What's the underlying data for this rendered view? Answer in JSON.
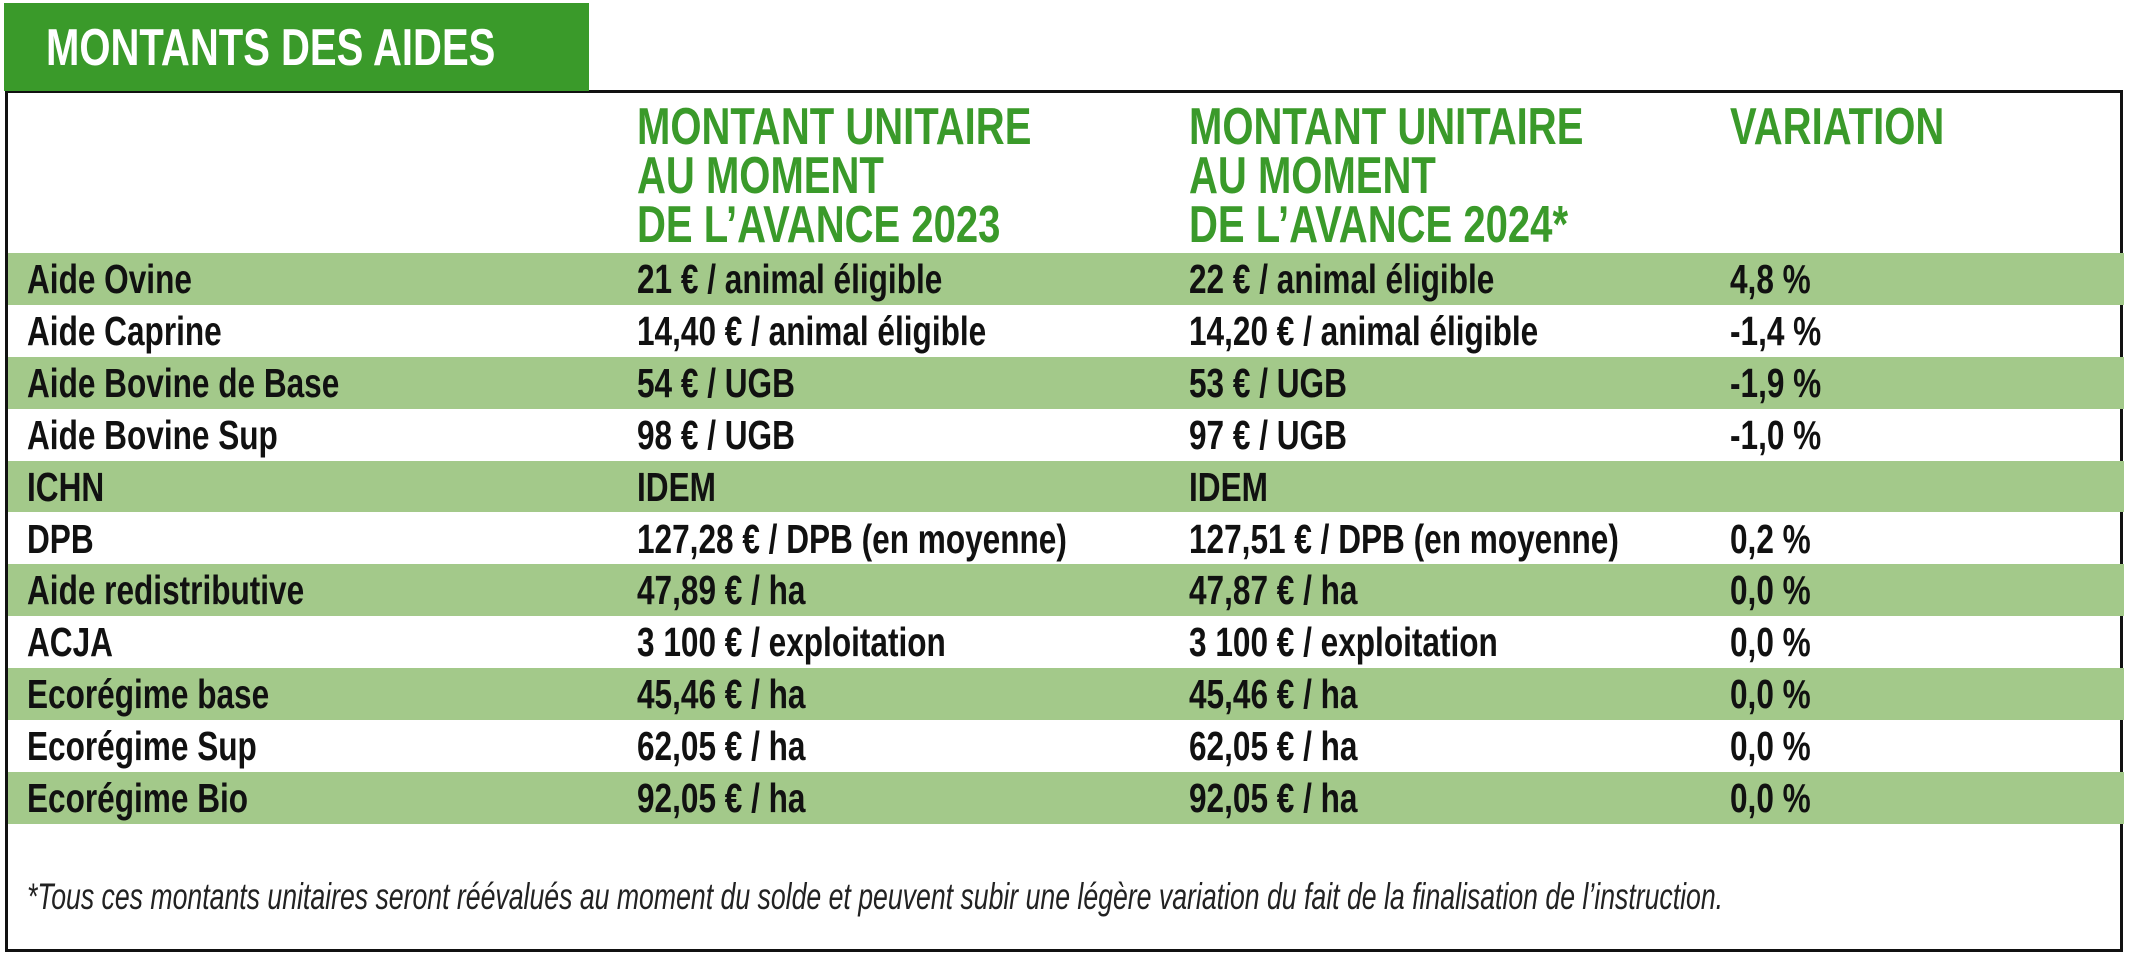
{
  "title": "MONTANTS DES AIDES",
  "table": {
    "header": [
      [
        "MONTANT UNITAIRE",
        "AU MOMENT",
        "DE L’AVANCE 2023"
      ],
      [
        "MONTANT UNITAIRE",
        "AU MOMENT",
        "DE L’AVANCE 2024*"
      ],
      [
        "VARIATION"
      ]
    ],
    "rows": [
      [
        "Aide Ovine",
        "21 € / animal éligible",
        "22 € / animal éligible",
        "4,8 %"
      ],
      [
        "Aide Caprine",
        "14,40 € / animal éligible",
        "14,20 € / animal éligible",
        "-1,4 %"
      ],
      [
        "Aide Bovine de Base",
        "54 € / UGB",
        "53 € / UGB",
        "-1,9 %"
      ],
      [
        "Aide Bovine Sup",
        "98 € / UGB",
        "97 € / UGB",
        "-1,0 %"
      ],
      [
        "ICHN",
        "IDEM",
        "IDEM"
      ],
      [
        "DPB",
        "127,28 € / DPB (en moyenne)",
        "127,51 € / DPB (en moyenne)",
        "0,2 %"
      ],
      [
        "Aide redistributive",
        "47,89 € / ha",
        "47,87 € / ha",
        "0,0 %"
      ],
      [
        "ACJA",
        "3 100 € / exploitation",
        "3 100 € / exploitation",
        "0,0 %"
      ],
      [
        "Ecorégime base",
        "45,46 € / ha",
        "45,46 € / ha",
        "0,0 %"
      ],
      [
        "Ecorégime Sup",
        "62,05 € / ha",
        "62,05 € / ha",
        "0,0 %"
      ],
      [
        "Ecorégime Bio",
        "92,05 € / ha",
        "92,05 € / ha",
        "0,0 %"
      ]
    ]
  },
  "footnote": "*Tous ces montants unitaires seront réévalués au moment du solde et peuvent subir une légère variation du fait de la finalisation de l’instruction."
}
